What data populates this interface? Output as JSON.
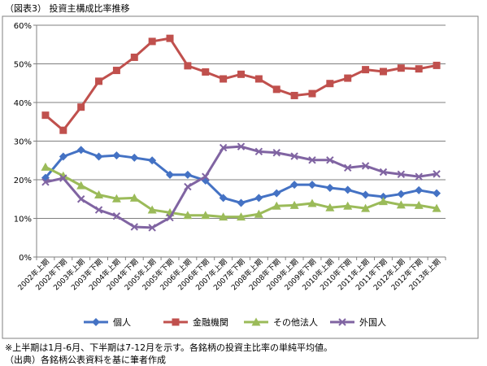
{
  "caption": "（図表3） 投資主構成比率推移",
  "notes": [
    "※上半期は1月-6月、下半期は7-12月を示す。各銘柄の投資主比率の単純平均値。",
    "（出典）各銘柄公表資料を基に筆者作成"
  ],
  "chart_data": {
    "type": "line",
    "title": "",
    "xlabel": "",
    "ylabel": "",
    "ylim": [
      0,
      60
    ],
    "yticks": [
      "0%",
      "10%",
      "20%",
      "30%",
      "40%",
      "50%",
      "60%"
    ],
    "grid": true,
    "legend_position": "bottom",
    "categories": [
      "2002年上期",
      "2002年下期",
      "2003年上期",
      "2003年下期",
      "2004年上期",
      "2004年下期",
      "2005年上期",
      "2005年下期",
      "2006年上期",
      "2006年下期",
      "2007年上期",
      "2007年下期",
      "2008年上期",
      "2008年下期",
      "2009年上期",
      "2009年下期",
      "2010年上期",
      "2010年下期",
      "2011年上期",
      "2011年下期",
      "2012年上期",
      "2012年下期",
      "2013年上期"
    ],
    "series": [
      {
        "name": "個人",
        "color": "#4472C4",
        "marker": "diamond",
        "values": [
          20.5,
          26.0,
          27.7,
          26.0,
          26.3,
          25.7,
          25.0,
          21.3,
          21.3,
          19.8,
          15.3,
          14.0,
          15.3,
          16.5,
          18.7,
          18.7,
          17.9,
          17.4,
          16.1,
          15.6,
          16.3,
          17.3,
          16.5
        ]
      },
      {
        "name": "金融機関",
        "color": "#C0504D",
        "marker": "square",
        "values": [
          36.7,
          32.8,
          38.8,
          45.5,
          48.3,
          51.7,
          55.8,
          56.6,
          49.5,
          47.9,
          46.1,
          47.3,
          46.1,
          43.4,
          41.8,
          42.3,
          44.9,
          46.3,
          48.5,
          48.0,
          48.9,
          48.7,
          49.6
        ]
      },
      {
        "name": "その他法人",
        "color": "#9BBB59",
        "marker": "triangle",
        "values": [
          23.3,
          21.0,
          18.5,
          16.1,
          15.1,
          15.3,
          12.2,
          11.5,
          10.8,
          10.8,
          10.4,
          10.4,
          11.1,
          13.2,
          13.4,
          13.9,
          12.8,
          13.2,
          12.6,
          14.4,
          13.5,
          13.4,
          12.6
        ]
      },
      {
        "name": "外国人",
        "color": "#8064A2",
        "marker": "x",
        "values": [
          19.4,
          20.4,
          15.0,
          12.2,
          10.6,
          7.8,
          7.6,
          10.2,
          18.2,
          20.8,
          28.3,
          28.6,
          27.3,
          27.0,
          26.1,
          25.1,
          25.1,
          23.1,
          23.6,
          22.0,
          21.4,
          20.8,
          21.5
        ]
      }
    ]
  }
}
